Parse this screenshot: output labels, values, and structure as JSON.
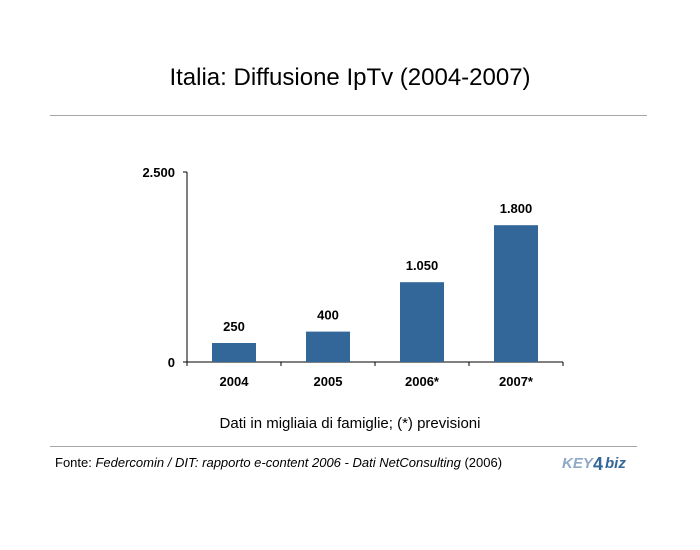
{
  "title": "Italia: Diffusione IpTv (2004-2007)",
  "subtitle": "Dati in migliaia di famiglie; (*) previsioni",
  "source": {
    "prefix": "Fonte: ",
    "italic": "Federcomin / DIT: rapporto e-content 2006 - Dati NetConsulting",
    "suffix": " (2006)"
  },
  "logo": {
    "brand": "KEY4biz"
  },
  "colors": {
    "bar": "#336699",
    "rule": "#a6a6a6",
    "axis": "#000000"
  },
  "chart_data": {
    "type": "bar",
    "categories": [
      "2004",
      "2005",
      "2006*",
      "2007*"
    ],
    "values": [
      250,
      400,
      1050,
      1800
    ],
    "value_labels": [
      "250",
      "400",
      "1.050",
      "1.800"
    ],
    "ylim": [
      0,
      2500
    ],
    "y_ticks": [
      0,
      2500
    ],
    "y_tick_labels": [
      "0",
      "2.500"
    ],
    "grid": false,
    "legend": "none"
  }
}
